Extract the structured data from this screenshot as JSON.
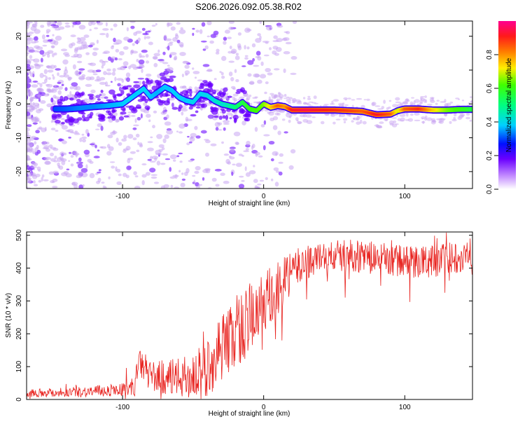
{
  "title": "S206.2026.092.05.38.R02",
  "colors": {
    "snr_line": "#e8231f",
    "axis": "#000000",
    "background": "#ffffff",
    "ridge_strong": "#e8231f",
    "ridge_mid": "#2bd93a",
    "ridge_low": "#00c8ff",
    "ridge_base": "#5a00ff",
    "noise": "#c9a6f2"
  },
  "chart_data": [
    {
      "type": "heatmap",
      "name": "spectrogram",
      "title": "S206.2026.092.05.38.R02",
      "xlabel": "Height of straight line (km)",
      "ylabel": "Frequency (Hz)",
      "xlim": [
        -168,
        148
      ],
      "ylim": [
        -25,
        24.5
      ],
      "x_ticks": [
        -100,
        0,
        100
      ],
      "y_ticks": [
        -20,
        -10,
        0,
        10,
        20
      ],
      "colorbar": {
        "label": "Normalized spectral amplitude",
        "range": [
          0,
          1
        ],
        "ticks": [
          0.0,
          0.2,
          0.4,
          0.6,
          0.8
        ]
      },
      "ridge": {
        "x": [
          -148,
          -140,
          -130,
          -120,
          -110,
          -100,
          -95,
          -90,
          -85,
          -80,
          -75,
          -70,
          -65,
          -60,
          -55,
          -50,
          -45,
          -40,
          -35,
          -30,
          -25,
          -20,
          -15,
          -10,
          -5,
          0,
          5,
          10,
          15,
          20,
          30,
          40,
          50,
          60,
          70,
          80,
          90,
          95,
          100,
          110,
          120,
          130,
          140,
          148
        ],
        "y": [
          -1.5,
          -1.5,
          -1.2,
          -0.8,
          -0.5,
          0.0,
          1.5,
          3.0,
          4.5,
          2.0,
          3.5,
          5.0,
          4.0,
          2.0,
          1.0,
          0.5,
          3.0,
          2.5,
          1.0,
          0.0,
          -0.5,
          -1.0,
          0.5,
          -1.5,
          -2.0,
          0.0,
          -1.0,
          -0.5,
          -0.8,
          -1.8,
          -1.8,
          -1.8,
          -1.8,
          -2.0,
          -2.2,
          -3.2,
          -3.0,
          -2.0,
          -1.5,
          -1.5,
          -1.8,
          -1.8,
          -1.6,
          -1.6
        ],
        "amplitude": [
          0.2,
          0.22,
          0.25,
          0.25,
          0.28,
          0.3,
          0.32,
          0.3,
          0.32,
          0.3,
          0.28,
          0.3,
          0.3,
          0.32,
          0.3,
          0.33,
          0.32,
          0.33,
          0.35,
          0.4,
          0.45,
          0.5,
          0.55,
          0.6,
          0.62,
          0.65,
          0.75,
          0.85,
          0.8,
          0.92,
          0.95,
          0.92,
          0.9,
          0.88,
          0.85,
          0.92,
          0.85,
          0.7,
          0.85,
          0.9,
          0.75,
          0.65,
          0.6,
          0.55
        ]
      }
    },
    {
      "type": "line",
      "name": "snr",
      "xlabel": "Height of straight line (km)",
      "ylabel": "SNR (10 * v/v)",
      "xlim": [
        -168,
        148
      ],
      "ylim": [
        0,
        510
      ],
      "x_ticks": [
        -100,
        0,
        100
      ],
      "y_ticks": [
        0,
        100,
        200,
        300,
        400,
        500
      ],
      "trend": {
        "x": [
          -168,
          -140,
          -120,
          -100,
          -92,
          -88,
          -80,
          -60,
          -50,
          -40,
          -30,
          -20,
          -10,
          0,
          10,
          15,
          20,
          30,
          40,
          60,
          80,
          100,
          120,
          148
        ],
        "y": [
          20,
          22,
          25,
          30,
          35,
          110,
          70,
          65,
          70,
          90,
          160,
          200,
          240,
          270,
          330,
          360,
          390,
          420,
          430,
          440,
          430,
          420,
          420,
          445
        ]
      },
      "noise_band": {
        "x": [
          -168,
          -100,
          -90,
          -60,
          -40,
          -20,
          0,
          20,
          40,
          100,
          148
        ],
        "amp": [
          12,
          20,
          40,
          60,
          90,
          110,
          120,
          60,
          50,
          50,
          50
        ]
      }
    }
  ]
}
